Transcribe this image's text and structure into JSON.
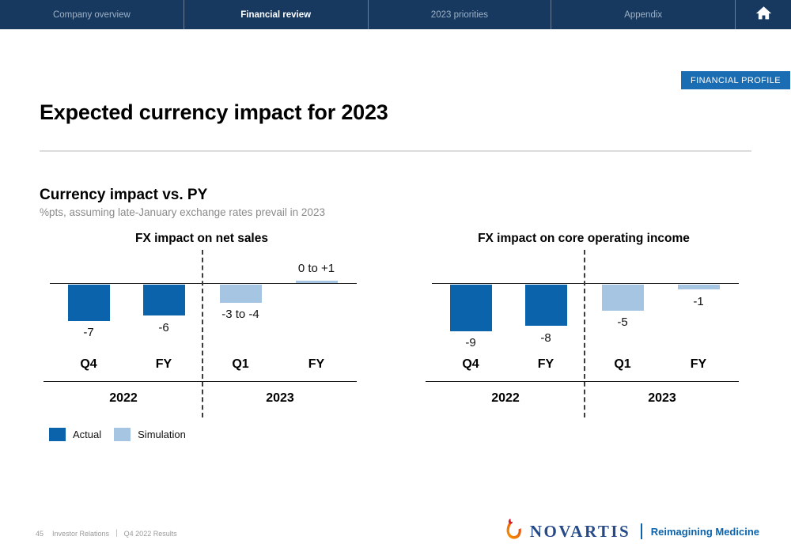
{
  "nav": {
    "tabs": [
      {
        "label": "Company overview",
        "active": false
      },
      {
        "label": "Financial review",
        "active": true
      },
      {
        "label": "2023 priorities",
        "active": false
      },
      {
        "label": "Appendix",
        "active": false
      }
    ]
  },
  "badge": {
    "label": "FINANCIAL PROFILE"
  },
  "header": {
    "title": "Expected currency impact for 2023"
  },
  "section": {
    "title": "Currency impact vs. PY",
    "subtitle": "%pts, assuming late-January exchange rates prevail in 2023"
  },
  "colors": {
    "nav_bg": "#17395f",
    "badge_bg": "#1a6db3",
    "actual": "#0b63ac",
    "simulation": "#a6c5e3"
  },
  "legend": {
    "items": [
      {
        "label": "Actual",
        "color": "#0b63ac"
      },
      {
        "label": "Simulation",
        "color": "#a6c5e3"
      }
    ]
  },
  "chart_data": [
    {
      "type": "bar",
      "title": "FX impact on net sales",
      "unit": "%pts vs PY",
      "categories": [
        "Q4",
        "FY",
        "Q1",
        "FY"
      ],
      "year_groups": [
        {
          "label": "2022",
          "span": [
            0,
            1
          ]
        },
        {
          "label": "2023",
          "span": [
            2,
            3
          ]
        }
      ],
      "bars": [
        {
          "category": "Q4",
          "year": "2022",
          "series": "Actual",
          "value": -7,
          "label": "-7"
        },
        {
          "category": "FY",
          "year": "2022",
          "series": "Actual",
          "value": -6,
          "label": "-6"
        },
        {
          "category": "Q1",
          "year": "2023",
          "series": "Simulation",
          "value": -3.5,
          "value_range": [
            -3,
            -4
          ],
          "label": "-3 to -4"
        },
        {
          "category": "FY",
          "year": "2023",
          "series": "Simulation",
          "value": 0.5,
          "value_range": [
            0,
            1
          ],
          "label": "0 to +1"
        }
      ]
    },
    {
      "type": "bar",
      "title": "FX impact on core operating income",
      "unit": "%pts vs PY",
      "categories": [
        "Q4",
        "FY",
        "Q1",
        "FY"
      ],
      "year_groups": [
        {
          "label": "2022",
          "span": [
            0,
            1
          ]
        },
        {
          "label": "2023",
          "span": [
            2,
            3
          ]
        }
      ],
      "bars": [
        {
          "category": "Q4",
          "year": "2022",
          "series": "Actual",
          "value": -9,
          "label": "-9"
        },
        {
          "category": "FY",
          "year": "2022",
          "series": "Actual",
          "value": -8,
          "label": "-8"
        },
        {
          "category": "Q1",
          "year": "2023",
          "series": "Simulation",
          "value": -5,
          "label": "-5"
        },
        {
          "category": "FY",
          "year": "2023",
          "series": "Simulation",
          "value": -1,
          "label": "-1"
        }
      ]
    }
  ],
  "footer": {
    "page_number": "45",
    "label": "Investor Relations",
    "separator": "|",
    "deck": "Q4 2022 Results",
    "brand": "NOVARTIS",
    "tagline": "Reimagining Medicine"
  }
}
